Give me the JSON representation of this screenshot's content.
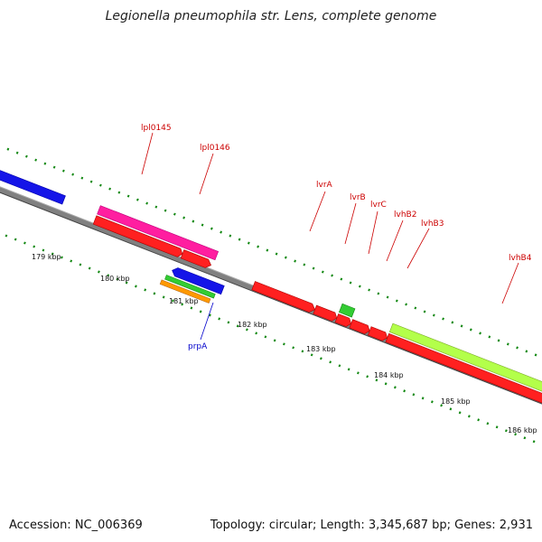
{
  "title": "Legionella pneumophila str. Lens, complete genome",
  "footer": {
    "accession": "Accession: NC_006369",
    "topology": "Topology: circular; Length: 3,345,687 bp; Genes: 2,931"
  },
  "ruler": {
    "unit": "kbp",
    "labels": [
      "179 kbp",
      "180 kbp",
      "181 kbp",
      "182 kbp",
      "183 kbp",
      "184 kbp",
      "185 kbp",
      "186 kbp"
    ]
  },
  "genes": [
    {
      "id": "blue-left",
      "label": "",
      "color": "#1010e0",
      "lane": "plus-outer"
    },
    {
      "id": "lpl0145",
      "label": "lpl0145",
      "color": "#ff1a99",
      "lane": "plus-outer"
    },
    {
      "id": "lpl0146",
      "label": "lpl0146",
      "color": "#ee1111",
      "lane": "plus-inner"
    },
    {
      "id": "lvrA",
      "label": "lvrA",
      "color": "#ee1111",
      "lane": "minus"
    },
    {
      "id": "lvrB",
      "label": "lvrB",
      "color": "#ee1111",
      "lane": "minus"
    },
    {
      "id": "lvrC",
      "label": "lvrC",
      "color": "#ee1111",
      "lane": "minus"
    },
    {
      "id": "lvhB2",
      "label": "lvhB2",
      "color": "#ee1111",
      "lane": "minus"
    },
    {
      "id": "lvhB3",
      "label": "lvhB3",
      "color": "#ee1111",
      "lane": "minus"
    },
    {
      "id": "lvhB4",
      "label": "lvhB4",
      "color": "#ee1111",
      "lane": "minus"
    },
    {
      "id": "prpA",
      "label": "prpA",
      "color": "#1010e0",
      "lane": "minus"
    },
    {
      "id": "green-small",
      "label": "",
      "color": "#33cc33",
      "lane": "plus"
    },
    {
      "id": "lime-long",
      "label": "",
      "color": "#aaff33",
      "lane": "plus"
    },
    {
      "id": "green-strip",
      "label": "",
      "color": "#33cc33",
      "lane": "minus"
    },
    {
      "id": "orange-strip",
      "label": "",
      "color": "#ff9900",
      "lane": "minus"
    }
  ],
  "label_colors": {
    "red": "#cc0000",
    "blue": "#0000cc"
  }
}
